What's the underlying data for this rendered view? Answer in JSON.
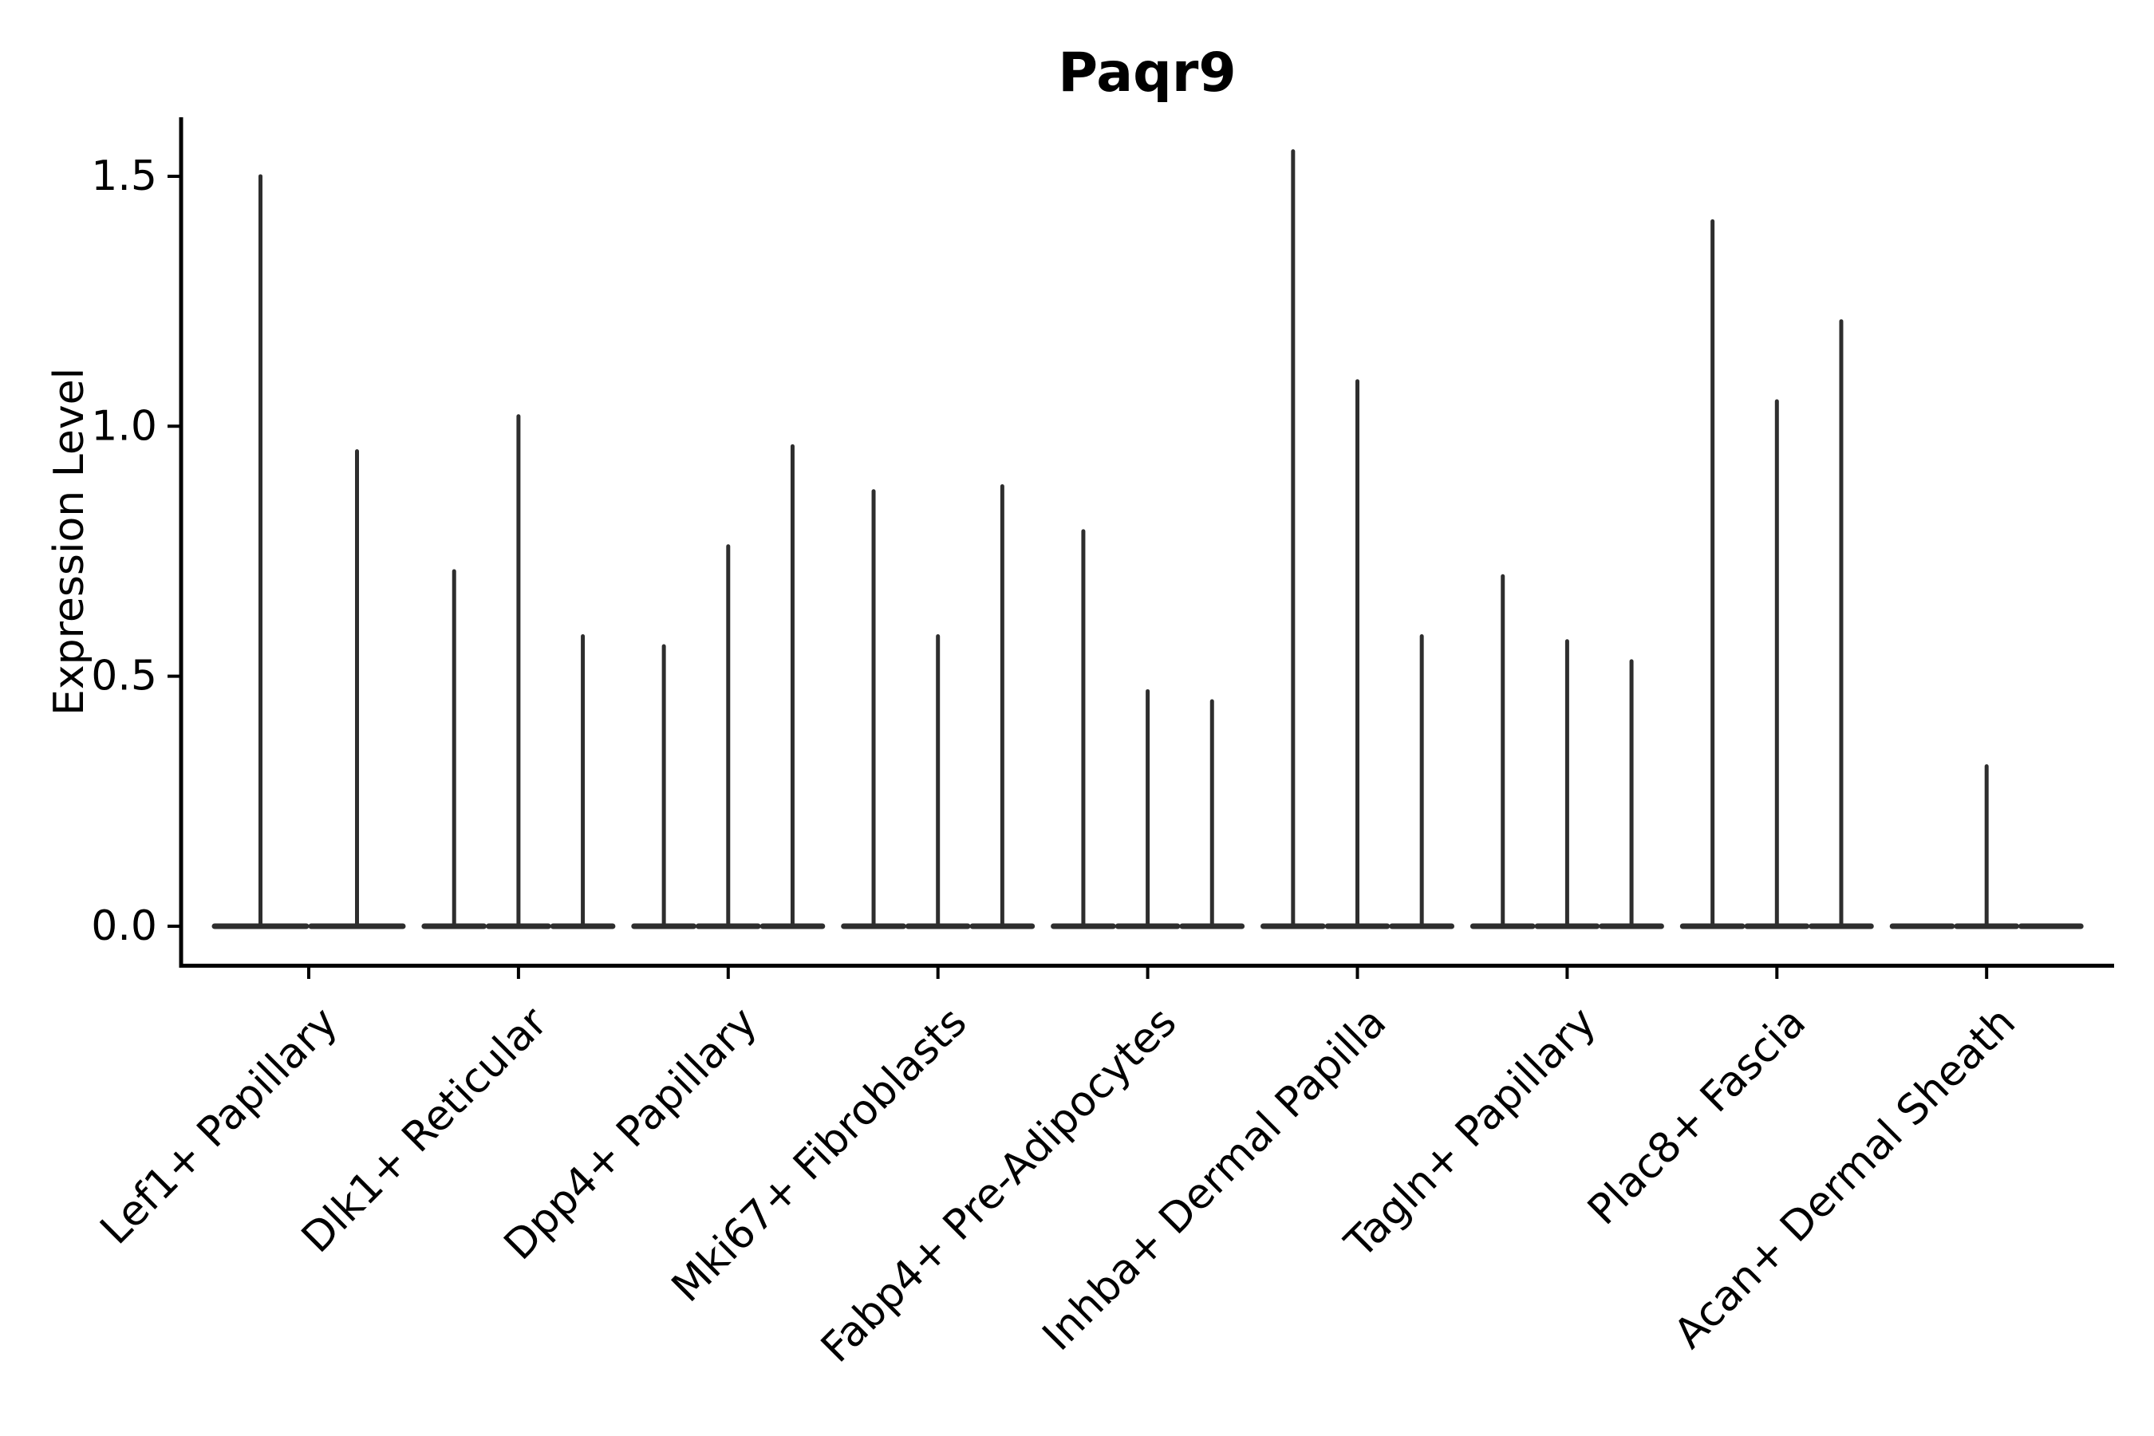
{
  "figure": {
    "title": "Paqr9",
    "y_axis_label": "Expression Level",
    "y_tick_labels": [
      "0.0",
      "0.5",
      "1.0",
      "1.5"
    ]
  },
  "colors": {
    "violin": "#2e2e2e",
    "axis": "#000000",
    "text": "#000000",
    "background": "#ffffff"
  },
  "chart_data": {
    "type": "violin",
    "title": "Paqr9",
    "xlabel": "",
    "ylabel": "Expression Level",
    "ylim": [
      -0.08,
      1.62
    ],
    "yticks": [
      0.0,
      0.5,
      1.0,
      1.5
    ],
    "ytick_labels": [
      "0.0",
      "0.5",
      "1.0",
      "1.5"
    ],
    "grid": false,
    "legend_position": "none",
    "description": "Violin plot of Paqr9 expression; each cell-type group contains 2-3 extremely thin violins (flat base at expression 0 with a thin tail spike up to the maximum expression value).",
    "categories": [
      "Lef1+ Papillary",
      "Dlk1+ Reticular",
      "Dpp4+ Papillary",
      "Mki67+ Fibroblasts",
      "Fabp4+ Pre-Adipocytes",
      "Inhba+ Dermal Papilla",
      "Tagln+ Papillary",
      "Plac8+ Fascia",
      "Acan+ Dermal Sheath"
    ],
    "groups": [
      {
        "category": "Lef1+ Papillary",
        "violin_max_expression": [
          1.5,
          0.95
        ]
      },
      {
        "category": "Dlk1+ Reticular",
        "violin_max_expression": [
          0.71,
          1.02,
          0.58
        ]
      },
      {
        "category": "Dpp4+ Papillary",
        "violin_max_expression": [
          0.56,
          0.76,
          0.96
        ]
      },
      {
        "category": "Mki67+ Fibroblasts",
        "violin_max_expression": [
          0.87,
          0.58,
          0.88
        ]
      },
      {
        "category": "Fabp4+ Pre-Adipocytes",
        "violin_max_expression": [
          0.79,
          0.47,
          0.45
        ]
      },
      {
        "category": "Inhba+ Dermal Papilla",
        "violin_max_expression": [
          1.55,
          1.09,
          0.58
        ]
      },
      {
        "category": "Tagln+ Papillary",
        "violin_max_expression": [
          0.7,
          0.57,
          0.53
        ]
      },
      {
        "category": "Plac8+ Fascia",
        "violin_max_expression": [
          1.41,
          1.05,
          1.21
        ]
      },
      {
        "category": "Acan+ Dermal Sheath",
        "violin_max_expression": [
          0.0,
          0.32,
          0.0
        ]
      }
    ]
  }
}
